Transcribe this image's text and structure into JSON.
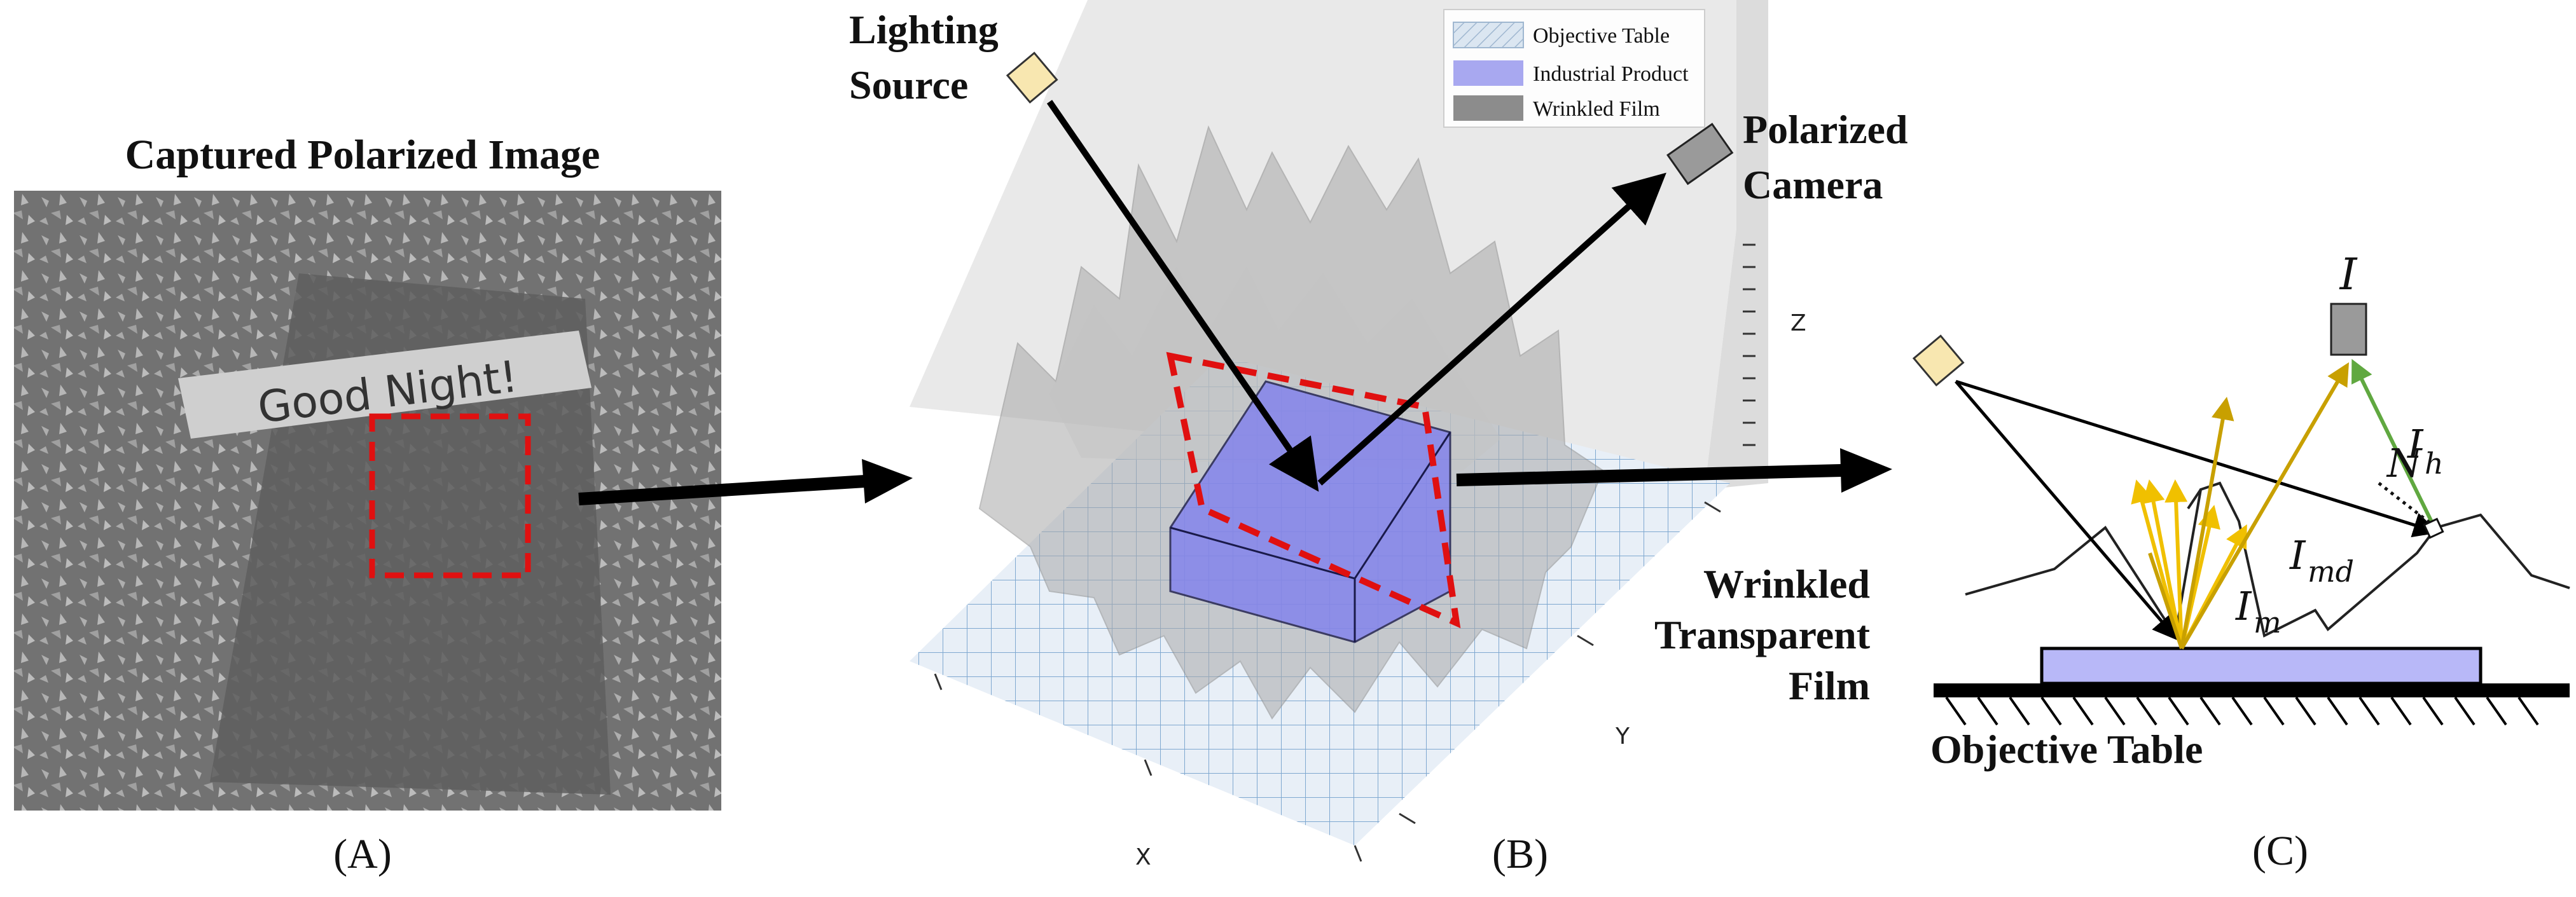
{
  "panel_a": {
    "title": "Captured Polarized Image",
    "card_text": "Good Night!",
    "label": "(A)"
  },
  "panel_b": {
    "lighting_source_label_line1": "Lighting",
    "lighting_source_label_line2": "Source",
    "camera_label_line1": "Polarized",
    "camera_label_line2": "Camera",
    "film_label_line1": "Wrinkled",
    "film_label_line2": "Transparent",
    "film_label_line3": "Film",
    "axis_x": "X",
    "axis_y": "Y",
    "axis_z": "Z",
    "legend": [
      {
        "label": "Objective Table",
        "color": "#c7d6e6"
      },
      {
        "label": "Industrial Product",
        "color": "#a8a8f0"
      },
      {
        "label": "Wrinkled Film",
        "color": "#8c8c8c"
      }
    ],
    "label": "(B)"
  },
  "panel_c": {
    "table_label": "Objective Table",
    "symbol_I": "I",
    "symbol_N": "N",
    "symbol_Ih": "I",
    "symbol_Ih_sub": "h",
    "symbol_Imd": "I",
    "symbol_Imd_sub": "md",
    "symbol_Im": "I",
    "symbol_Im_sub": "m",
    "label": "(C)"
  },
  "colors": {
    "highlight_box": "#e01010",
    "arrow": "#000000",
    "product": "#8080ee",
    "light_fill": "#f8e7b0",
    "camera_fill": "#9a9a9a",
    "ray_yellow": "#f0c000",
    "ray_gold": "#c8a000",
    "ray_green": "#60a840"
  }
}
